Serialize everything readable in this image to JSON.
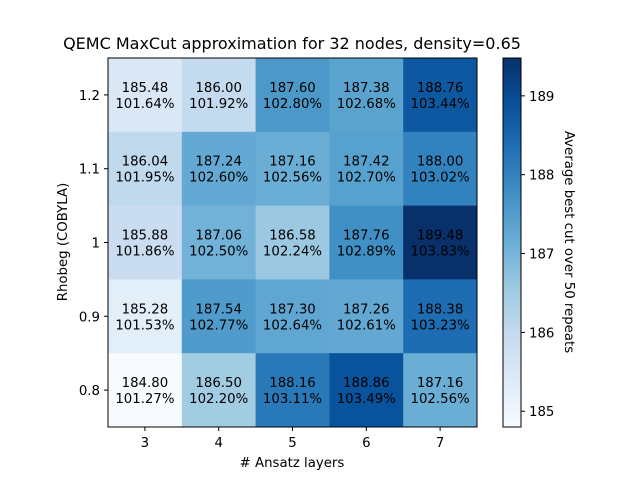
{
  "chart_data": {
    "type": "heatmap",
    "title": "QEMC MaxCut approximation for 32 nodes, density=0.65",
    "xlabel": "# Ansatz layers",
    "ylabel": "Rhobeg (COBYLA)",
    "x": [
      "3",
      "4",
      "5",
      "6",
      "7"
    ],
    "y_top_to_bottom": [
      "1.2",
      "1.1",
      "1",
      "0.9",
      "0.8"
    ],
    "values": [
      [
        185.48,
        186.0,
        187.6,
        187.38,
        188.76
      ],
      [
        186.04,
        187.24,
        187.16,
        187.42,
        188.0
      ],
      [
        185.88,
        187.06,
        186.58,
        187.76,
        189.48
      ],
      [
        185.28,
        187.54,
        187.3,
        187.26,
        188.38
      ],
      [
        184.8,
        186.5,
        188.16,
        188.86,
        187.16
      ]
    ],
    "value_labels": [
      [
        "185.48",
        "186.00",
        "187.60",
        "187.38",
        "188.76"
      ],
      [
        "186.04",
        "187.24",
        "187.16",
        "187.42",
        "188.00"
      ],
      [
        "185.88",
        "187.06",
        "186.58",
        "187.76",
        "189.48"
      ],
      [
        "185.28",
        "187.54",
        "187.30",
        "187.26",
        "188.38"
      ],
      [
        "184.80",
        "186.50",
        "188.16",
        "188.86",
        "187.16"
      ]
    ],
    "percent_labels": [
      [
        "101.64%",
        "101.92%",
        "102.80%",
        "102.68%",
        "103.44%"
      ],
      [
        "101.95%",
        "102.60%",
        "102.56%",
        "102.70%",
        "103.02%"
      ],
      [
        "101.86%",
        "102.50%",
        "102.24%",
        "102.89%",
        "103.83%"
      ],
      [
        "101.53%",
        "102.77%",
        "102.64%",
        "102.61%",
        "103.23%"
      ],
      [
        "101.27%",
        "102.20%",
        "103.11%",
        "103.49%",
        "102.56%"
      ]
    ],
    "colorbar": {
      "label": "Average best cut over 50 repeats",
      "ticks": [
        "185",
        "186",
        "187",
        "188",
        "189"
      ],
      "tick_values": [
        185,
        186,
        187,
        188,
        189
      ],
      "range": [
        184.8,
        189.48
      ],
      "colormap": "Blues"
    }
  }
}
